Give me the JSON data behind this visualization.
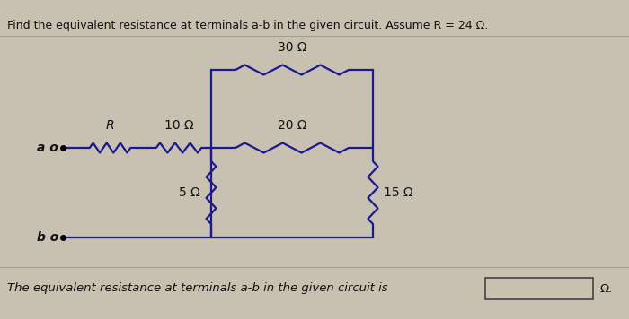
{
  "title": "Find the equivalent resistance at terminals a-b in the given circuit. Assume R = 24 Ω.",
  "bottom_text": "The equivalent resistance at terminals a-b in the given circuit is",
  "background_color": "#c8c0b0",
  "line_color": "#000000",
  "circuit_line_color": "#1a1a8c",
  "text_color": "#111111",
  "resistor_labels": {
    "R": "R",
    "30": "30 Ω",
    "10": "10 Ω",
    "20": "20 Ω",
    "5": "5 Ω",
    "15": "15 Ω"
  }
}
